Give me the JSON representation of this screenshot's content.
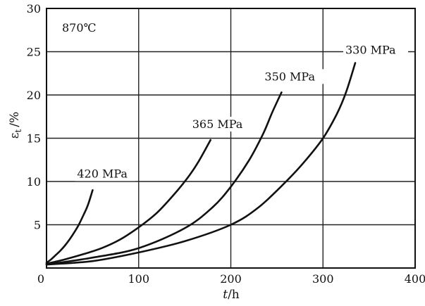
{
  "chart_data": {
    "type": "line",
    "title": "",
    "annotation": "870℃",
    "xlabel_var": "t",
    "xlabel_unit": "/h",
    "ylabel_var": "ε",
    "ylabel_sub": "t",
    "ylabel_unit": "/%",
    "xlim": [
      0,
      400
    ],
    "ylim": [
      0,
      30
    ],
    "xticks": [
      0,
      100,
      200,
      300,
      400
    ],
    "yticks": [
      5,
      10,
      15,
      20,
      25,
      30
    ],
    "grid": true,
    "series": [
      {
        "name": "420 MPa",
        "x": [
          0,
          5,
          10,
          15,
          20,
          25,
          30,
          35,
          40,
          45,
          50
        ],
        "y": [
          0.6,
          1.0,
          1.5,
          2.0,
          2.6,
          3.3,
          4.1,
          5.0,
          6.1,
          7.3,
          9.0
        ]
      },
      {
        "name": "365 MPa",
        "x": [
          0,
          20,
          40,
          60,
          80,
          100,
          120,
          140,
          155,
          165,
          178
        ],
        "y": [
          0.5,
          1.0,
          1.6,
          2.3,
          3.3,
          4.7,
          6.4,
          8.7,
          10.7,
          12.3,
          14.8
        ]
      },
      {
        "name": "350 MPa",
        "x": [
          0,
          50,
          100,
          150,
          180,
          200,
          220,
          235,
          245,
          255
        ],
        "y": [
          0.4,
          1.2,
          2.3,
          4.6,
          7.0,
          9.4,
          12.5,
          15.5,
          18.0,
          20.3
        ]
      },
      {
        "name": "330 MPa",
        "x": [
          0,
          50,
          100,
          150,
          200,
          230,
          260,
          280,
          300,
          315,
          325,
          335
        ],
        "y": [
          0.4,
          0.8,
          1.8,
          3.1,
          5.0,
          7.0,
          10.0,
          12.3,
          15.0,
          17.8,
          20.3,
          23.7
        ]
      }
    ]
  }
}
